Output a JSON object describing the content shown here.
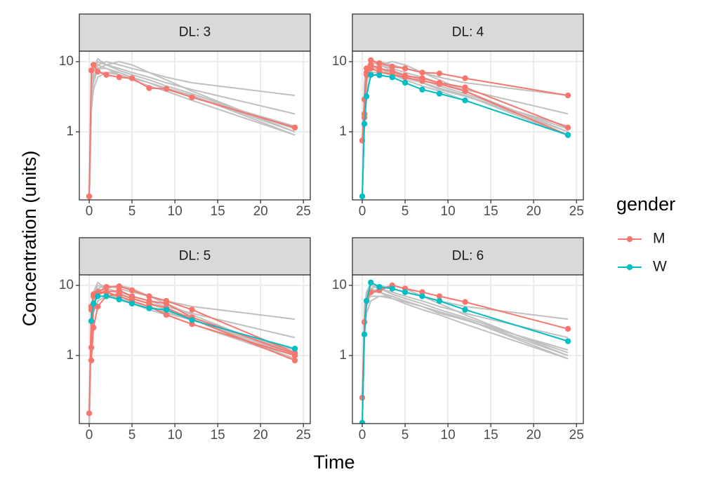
{
  "xlabel": "Time",
  "ylabel": "Concentration (units)",
  "legend": {
    "title": "gender",
    "position": "right"
  },
  "background": {
    "color": "#c0c0c0",
    "x": [
      0,
      0.25,
      0.5,
      1,
      2,
      3.5,
      5,
      7,
      9,
      12,
      24
    ],
    "series": [
      [
        0.1,
        2,
        5,
        9,
        10,
        9,
        8,
        7,
        6,
        5,
        3.3
      ],
      [
        0.1,
        3,
        7,
        10,
        9,
        8,
        7,
        6,
        5,
        4,
        1.8
      ],
      [
        0.1,
        4,
        8,
        11,
        9,
        7.5,
        6.5,
        5.5,
        4.5,
        3.5,
        1.1
      ],
      [
        0.1,
        2,
        6,
        8,
        8,
        7,
        6,
        5,
        4.2,
        3.3,
        1
      ],
      [
        0.1,
        3,
        6,
        7,
        7,
        6.5,
        5.8,
        5,
        4.2,
        3.3,
        0.9
      ],
      [
        0.1,
        5,
        8,
        9,
        8,
        6.5,
        5.5,
        4.5,
        3.8,
        2.8,
        0.9
      ],
      [
        0.1,
        2,
        4,
        6,
        7,
        7,
        6,
        5,
        4,
        3.2,
        1.2
      ],
      [
        0.1,
        3,
        5,
        8,
        9,
        10,
        9,
        7,
        5.5,
        3.8,
        1
      ]
    ]
  },
  "chart_data": [
    {
      "type": "line",
      "title": "DL: 3",
      "ylog": true,
      "grid": true,
      "x": [
        0,
        0.25,
        0.5,
        1,
        2,
        3.5,
        5,
        7,
        9,
        12,
        24
      ],
      "xlim": [
        -1.15,
        25.8
      ],
      "xticks": [
        0,
        5,
        10,
        15,
        20,
        25
      ],
      "ylim": [
        0.107,
        14.1
      ],
      "yticks": [
        1,
        10
      ],
      "series": [
        {
          "name": "M",
          "color": "#f8766d",
          "values": [
            0.12,
            7.5,
            9,
            7.2,
            6.5,
            6,
            5.8,
            4.2,
            4.1,
            3.1,
            1.15
          ]
        }
      ]
    },
    {
      "type": "line",
      "title": "DL: 4",
      "ylog": true,
      "grid": true,
      "x": [
        0,
        0.25,
        0.5,
        1,
        2,
        3.5,
        5,
        7,
        9,
        12,
        24
      ],
      "xlim": [
        -1.15,
        25.8
      ],
      "xticks": [
        0,
        5,
        10,
        15,
        20,
        25
      ],
      "ylim": [
        0.107,
        14.1
      ],
      "yticks": [
        1,
        10
      ],
      "series": [
        {
          "name": "M",
          "color": "#f8766d",
          "values": [
            0.75,
            2.9,
            7,
            10.5,
            9.5,
            8.5,
            8,
            7,
            6.8,
            5.8,
            3.3
          ]
        },
        {
          "name": "M",
          "color": "#f8766d",
          "values": [
            null,
            1.8,
            8,
            9,
            8,
            7.3,
            6.3,
            5.8,
            5,
            4.3,
            1.15
          ]
        },
        {
          "name": "M",
          "color": "#f8766d",
          "values": [
            null,
            1.6,
            6.5,
            8,
            7.2,
            6.5,
            6,
            5.3,
            4.8,
            3.8,
            0.9
          ]
        },
        {
          "name": "W",
          "color": "#00bfc4",
          "values": [
            0.12,
            1.3,
            3.2,
            6.5,
            6.4,
            6,
            5,
            4,
            3.5,
            2.8,
            0.9
          ]
        }
      ]
    },
    {
      "type": "line",
      "title": "DL: 5",
      "ylog": true,
      "grid": true,
      "x": [
        0,
        0.25,
        0.5,
        1,
        2,
        3.5,
        5,
        7,
        9,
        12,
        24
      ],
      "xlim": [
        -1.15,
        25.8
      ],
      "xticks": [
        0,
        5,
        10,
        15,
        20,
        25
      ],
      "ylim": [
        0.107,
        14.1
      ],
      "yticks": [
        1,
        10
      ],
      "series": [
        {
          "name": "M",
          "color": "#f8766d",
          "values": [
            0.15,
            4.5,
            7.5,
            8,
            9.5,
            9.7,
            8.5,
            7,
            6,
            4.5,
            1.1
          ]
        },
        {
          "name": "M",
          "color": "#f8766d",
          "values": [
            null,
            0.85,
            2.5,
            5,
            7,
            7.5,
            6.5,
            5.5,
            4.8,
            3.3,
            0.85
          ]
        },
        {
          "name": "M",
          "color": "#f8766d",
          "values": [
            null,
            1.3,
            5,
            7.5,
            8,
            7,
            6,
            5,
            3.8,
            2.8,
            1
          ]
        },
        {
          "name": "M",
          "color": "#f8766d",
          "values": [
            null,
            5,
            7,
            8,
            8,
            8.5,
            7,
            6,
            5.5,
            3.5,
            1.05
          ]
        },
        {
          "name": "W",
          "color": "#00bfc4",
          "values": [
            null,
            3.1,
            5.5,
            7,
            7,
            6.3,
            5.5,
            4.7,
            4.5,
            3.2,
            1.25
          ]
        }
      ]
    },
    {
      "type": "line",
      "title": "DL: 6",
      "ylog": true,
      "grid": true,
      "x": [
        0,
        0.25,
        0.5,
        1,
        2,
        3.5,
        5,
        7,
        9,
        12,
        24
      ],
      "xlim": [
        -1.15,
        25.8
      ],
      "xticks": [
        0,
        5,
        10,
        15,
        20,
        25
      ],
      "ylim": [
        0.107,
        14.1
      ],
      "yticks": [
        1,
        10
      ],
      "series": [
        {
          "name": "M",
          "color": "#f8766d",
          "values": [
            0.25,
            3,
            6,
            8,
            8.5,
            10,
            9,
            8,
            7,
            5.8,
            2.4
          ]
        },
        {
          "name": "W",
          "color": "#00bfc4",
          "values": [
            0.11,
            2,
            6,
            11,
            9.5,
            9,
            8,
            7,
            6,
            4.5,
            1.6
          ]
        }
      ]
    }
  ]
}
